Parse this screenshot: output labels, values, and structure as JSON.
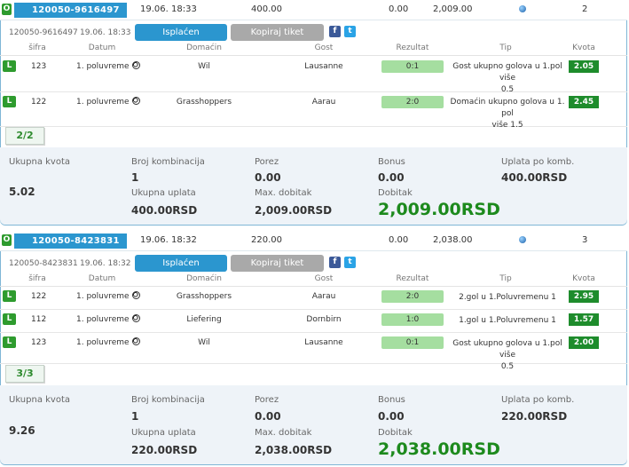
{
  "tickets": [
    {
      "id": "120050-9616497",
      "date": "19.06. 18:33",
      "stake": "400.00",
      "tax": "0.00",
      "payout": "2,009.00",
      "count": "2",
      "sub_id": "120050-9616497",
      "sub_date": "19.06. 18:33",
      "paid_label": "Isplaćen",
      "copy_label": "Kopiraj tiket",
      "columns": {
        "sifra": "šifra",
        "datum": "Datum",
        "domacin": "Domaćin",
        "gost": "Gost",
        "rezultat": "Rezultat",
        "tip": "Tip",
        "kvota": "Kvota"
      },
      "rows": [
        {
          "status": "L",
          "code": "123",
          "period": "1. poluvreme",
          "home": "Wil",
          "away": "Lausanne",
          "result": "0:1",
          "tip1": "Gost ukupno golova u 1.pol više",
          "tip2": "0.5",
          "odd": "2.05"
        },
        {
          "status": "L",
          "code": "122",
          "period": "1. poluvreme",
          "home": "Grasshoppers",
          "away": "Aarau",
          "result": "2:0",
          "tip1": "Domaćin ukupno golova u 1. pol",
          "tip2": "više 1.5",
          "odd": "2.45"
        }
      ],
      "combo_count": "2/2",
      "summary": {
        "ukupna_kvota_label": "Ukupna kvota",
        "ukupna_kvota": "5.02",
        "broj_komb_label": "Broj kombinacija",
        "broj_komb": "1",
        "porez_label": "Porez",
        "porez": "0.00",
        "bonus_label": "Bonus",
        "bonus": "0.00",
        "uplata_po_komb_label": "Uplata po komb.",
        "uplata_po_komb": "400.00RSD",
        "ukupna_uplata_label": "Ukupna uplata",
        "ukupna_uplata": "400.00RSD",
        "max_dobitak_label": "Max. dobitak",
        "max_dobitak": "2,009.00RSD",
        "dobitak_label": "Dobitak",
        "dobitak": "2,009.00RSD"
      }
    },
    {
      "id": "120050-8423831",
      "date": "19.06. 18:32",
      "stake": "220.00",
      "tax": "0.00",
      "payout": "2,038.00",
      "count": "3",
      "sub_id": "120050-8423831",
      "sub_date": "19.06. 18:32",
      "paid_label": "Isplaćen",
      "copy_label": "Kopiraj tiket",
      "columns": {
        "sifra": "šifra",
        "datum": "Datum",
        "domacin": "Domaćin",
        "gost": "Gost",
        "rezultat": "Rezultat",
        "tip": "Tip",
        "kvota": "Kvota"
      },
      "rows": [
        {
          "status": "L",
          "code": "122",
          "period": "1. poluvreme",
          "home": "Grasshoppers",
          "away": "Aarau",
          "result": "2:0",
          "tip1": "2.gol u 1.Poluvremenu 1",
          "tip2": "",
          "odd": "2.95"
        },
        {
          "status": "L",
          "code": "112",
          "period": "1. poluvreme",
          "home": "Liefering",
          "away": "Dornbirn",
          "result": "1:0",
          "tip1": "1.gol u 1.Poluvremenu 1",
          "tip2": "",
          "odd": "1.57"
        },
        {
          "status": "L",
          "code": "123",
          "period": "1. poluvreme",
          "home": "Wil",
          "away": "Lausanne",
          "result": "0:1",
          "tip1": "Gost ukupno golova u 1.pol više",
          "tip2": "0.5",
          "odd": "2.00"
        }
      ],
      "combo_count": "3/3",
      "summary": {
        "ukupna_kvota_label": "Ukupna kvota",
        "ukupna_kvota": "9.26",
        "broj_komb_label": "Broj kombinacija",
        "broj_komb": "1",
        "porez_label": "Porez",
        "porez": "0.00",
        "bonus_label": "Bonus",
        "bonus": "0.00",
        "uplata_po_komb_label": "Uplata po komb.",
        "uplata_po_komb": "220.00RSD",
        "ukupna_uplata_label": "Ukupna uplata",
        "ukupna_uplata": "220.00RSD",
        "max_dobitak_label": "Max. dobitak",
        "max_dobitak": "2,038.00RSD",
        "dobitak_label": "Dobitak",
        "dobitak": "2,038.00RSD"
      }
    }
  ],
  "colors": {
    "accent": "#2b96cf",
    "win": "#1d8a1d",
    "result_bg": "#a5dea0",
    "odd_bg": "#1e8c2c"
  }
}
